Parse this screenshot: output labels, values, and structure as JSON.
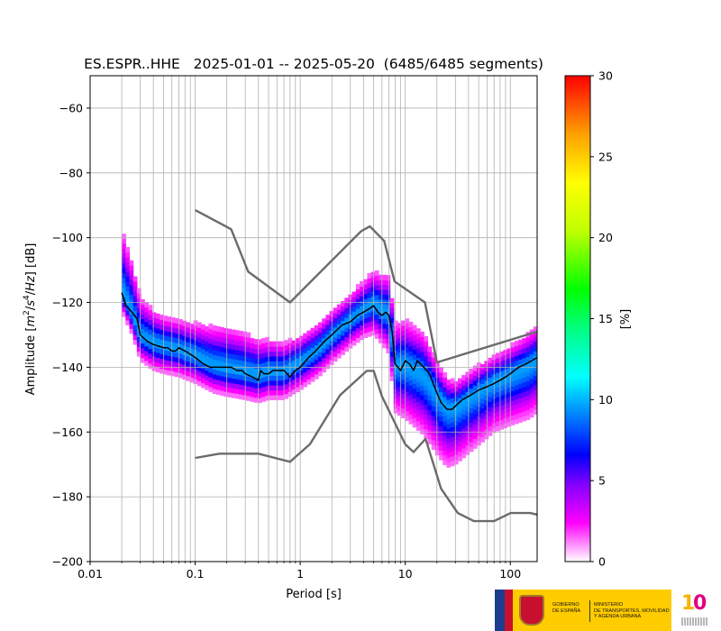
{
  "chart_data": {
    "type": "heatmap",
    "title": "ES.ESPR..HHE   2025-01-01 -- 2025-05-20  (6485/6485 segments)",
    "xlabel": "Period [s]",
    "ylabel_parts": [
      "Amplitude [",
      "m",
      "2",
      "/",
      "s",
      "4",
      "/",
      "Hz",
      "] [dB]"
    ],
    "x_scale": "log",
    "xlim": [
      0.01,
      180
    ],
    "ylim": [
      -200,
      -50
    ],
    "grid": true,
    "x_ticks": [
      {
        "value": 0.01,
        "label": "0.01"
      },
      {
        "value": 0.1,
        "label": "0.1"
      },
      {
        "value": 1,
        "label": "1"
      },
      {
        "value": 10,
        "label": "10"
      },
      {
        "value": 100,
        "label": "100"
      }
    ],
    "y_ticks": [
      {
        "value": -60,
        "label": "−60"
      },
      {
        "value": -80,
        "label": "−80"
      },
      {
        "value": -100,
        "label": "−100"
      },
      {
        "value": -120,
        "label": "−120"
      },
      {
        "value": -140,
        "label": "−140"
      },
      {
        "value": -160,
        "label": "−160"
      },
      {
        "value": -180,
        "label": "−180"
      },
      {
        "value": -200,
        "label": "−200"
      }
    ],
    "colorbar": {
      "label": "[%]",
      "range": [
        0,
        30
      ],
      "ticks": [
        {
          "value": 0,
          "label": "0"
        },
        {
          "value": 5,
          "label": "5"
        },
        {
          "value": 10,
          "label": "10"
        },
        {
          "value": 15,
          "label": "15"
        },
        {
          "value": 20,
          "label": "20"
        },
        {
          "value": 25,
          "label": "25"
        },
        {
          "value": 30,
          "label": "30"
        }
      ],
      "colors": [
        "#ffffff",
        "#ff00ff",
        "#8000ff",
        "#0000ff",
        "#00a0ff",
        "#00ffff",
        "#00ff80",
        "#00ff00",
        "#c0ff00",
        "#ffff00",
        "#ffa000",
        "#ff0000"
      ]
    },
    "density_band": {
      "period": [
        0.02,
        0.025,
        0.03,
        0.04,
        0.05,
        0.07,
        0.1,
        0.15,
        0.2,
        0.3,
        0.4,
        0.5,
        0.7,
        1,
        1.5,
        2,
        3,
        4,
        5,
        6,
        7,
        8,
        10,
        15,
        20,
        25,
        30,
        50,
        70,
        100,
        150,
        180
      ],
      "center": [
        -117,
        -124,
        -131,
        -133,
        -134,
        -135,
        -137,
        -140,
        -141,
        -142,
        -143,
        -142,
        -142,
        -139,
        -135,
        -131,
        -126,
        -123,
        -121,
        -123,
        -124,
        -140,
        -140,
        -143,
        -149,
        -153,
        -153,
        -148,
        -145,
        -143,
        -140,
        -138
      ],
      "spread_upper": [
        19,
        16,
        12,
        10,
        9,
        9,
        10,
        12,
        13,
        12,
        11,
        10,
        9,
        8,
        8,
        8,
        8,
        9,
        10,
        11,
        12,
        13,
        14,
        13,
        10,
        9,
        8,
        8,
        8,
        9,
        10,
        10
      ],
      "spread_lower": [
        6,
        6,
        7,
        8,
        8,
        8,
        8,
        8,
        8,
        8,
        8,
        8,
        8,
        8,
        8,
        8,
        8,
        8,
        9,
        10,
        12,
        14,
        16,
        18,
        18,
        18,
        17,
        16,
        15,
        15,
        16,
        16
      ]
    },
    "series": [
      {
        "kind": "mode",
        "color": "#000000",
        "x": [
          0.02,
          0.022,
          0.025,
          0.028,
          0.03,
          0.035,
          0.04,
          0.045,
          0.05,
          0.055,
          0.06,
          0.065,
          0.07,
          0.08,
          0.09,
          0.1,
          0.12,
          0.14,
          0.17,
          0.2,
          0.22,
          0.25,
          0.28,
          0.3,
          0.35,
          0.4,
          0.42,
          0.45,
          0.5,
          0.55,
          0.6,
          0.7,
          0.8,
          0.9,
          1,
          1.2,
          1.4,
          1.7,
          2,
          2.5,
          3,
          3.5,
          4,
          4.5,
          5,
          5.5,
          6,
          6.5,
          7,
          7.5,
          8,
          8.5,
          9,
          10,
          11,
          12,
          13,
          14,
          15,
          17,
          20,
          22,
          25,
          28,
          30,
          35,
          40,
          50,
          60,
          70,
          80,
          90,
          100,
          120,
          140,
          160,
          180
        ],
        "y": [
          -117,
          -121,
          -123,
          -125,
          -130,
          -132,
          -133,
          -133.5,
          -134,
          -134,
          -135,
          -135,
          -134,
          -135,
          -136,
          -137,
          -139,
          -140,
          -140,
          -140,
          -140,
          -141,
          -141,
          -142,
          -143,
          -144,
          -141,
          -142,
          -142,
          -141,
          -141,
          -141,
          -143,
          -141,
          -140,
          -137,
          -135,
          -132,
          -130,
          -127,
          -126,
          -124,
          -123,
          -122,
          -121,
          -123,
          -124,
          -123,
          -124,
          -129,
          -139,
          -140,
          -141,
          -138,
          -139,
          -141,
          -138,
          -139,
          -140,
          -142,
          -148,
          -151,
          -153,
          -153,
          -152,
          -150,
          -149,
          -147,
          -146,
          -145,
          -144,
          -143,
          -142,
          -140,
          -139,
          -138,
          -137
        ]
      },
      {
        "kind": "nhnm",
        "color": "#6b6b6b",
        "x": [
          0.1,
          0.22,
          0.32,
          0.8,
          3.8,
          4.6,
          6.3,
          7.9,
          15.4,
          20,
          180
        ],
        "y": [
          -91.5,
          -97.4,
          -110.5,
          -120,
          -98,
          -96.5,
          -101,
          -113.5,
          -120,
          -138.5,
          -129
        ]
      },
      {
        "kind": "nlnm",
        "color": "#6b6b6b",
        "x": [
          0.1,
          0.17,
          0.4,
          0.8,
          1.24,
          2.4,
          4.3,
          5,
          6,
          10,
          12,
          15.6,
          21.9,
          31.6,
          45,
          70,
          101,
          154,
          180
        ],
        "y": [
          -168,
          -166.7,
          -166.7,
          -169.2,
          -163.7,
          -148.6,
          -141.1,
          -141.1,
          -149,
          -163.8,
          -166.2,
          -162.1,
          -177.5,
          -185,
          -187.5,
          -187.5,
          -185,
          -185,
          -185.5
        ]
      }
    ]
  }
}
